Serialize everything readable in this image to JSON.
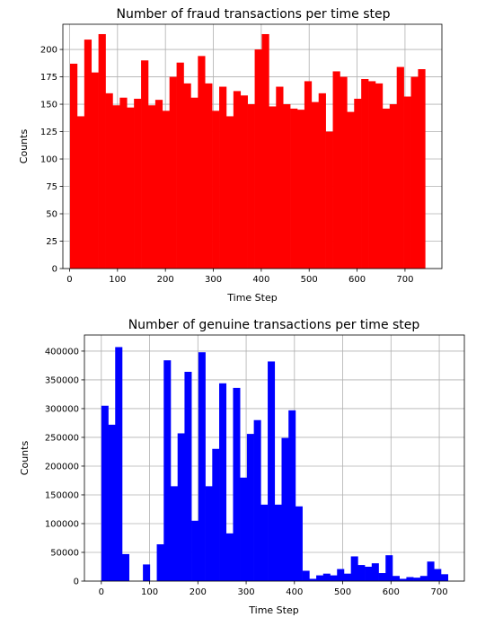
{
  "chart_data": [
    {
      "type": "bar",
      "title": "Number of fraud transactions per time step",
      "xlabel": "Time Step",
      "ylabel": "Counts",
      "color": "#ff0000",
      "grid": true,
      "xlim": [
        -14,
        777
      ],
      "ylim": [
        0,
        223
      ],
      "xticks": [
        0,
        100,
        200,
        300,
        400,
        500,
        600,
        700
      ],
      "xtick_labels": [
        "0",
        "100",
        "200",
        "300",
        "400",
        "500",
        "600",
        "700"
      ],
      "yticks": [
        0,
        25,
        50,
        75,
        100,
        125,
        150,
        175,
        200
      ],
      "ytick_labels": [
        "0",
        "25",
        "50",
        "75",
        "100",
        "125",
        "150",
        "175",
        "200"
      ],
      "bin_edges": [
        1,
        15.82,
        30.64,
        45.46,
        60.28,
        75.1,
        89.92,
        104.74,
        119.56,
        134.38,
        149.2,
        164.02,
        178.84,
        193.66,
        208.48,
        223.3,
        238.12,
        252.94,
        267.76,
        282.58,
        297.4,
        312.22,
        327.04,
        341.86,
        356.68,
        371.5,
        386.32,
        401.14,
        415.96,
        430.78,
        445.6,
        460.42,
        475.24,
        490.06,
        504.88,
        519.7,
        534.52,
        549.34,
        564.16,
        578.98,
        593.8,
        608.62,
        623.44,
        638.26,
        653.08,
        667.9,
        682.72,
        697.54,
        712.36,
        727.18,
        742
      ],
      "values": [
        187,
        139,
        209,
        179,
        214,
        160,
        149,
        156,
        147,
        155,
        190,
        149,
        154,
        144,
        175,
        188,
        169,
        156,
        194,
        169,
        144,
        166,
        139,
        162,
        158,
        150,
        200,
        214,
        148,
        166,
        150,
        146,
        145,
        171,
        152,
        160,
        125,
        180,
        175,
        143,
        155,
        173,
        171,
        169,
        146,
        150,
        184,
        157,
        175,
        182
      ]
    },
    {
      "type": "bar",
      "title": "Number of genuine transactions per time step",
      "xlabel": "Time Step",
      "ylabel": "Counts",
      "color": "#0000ff",
      "grid": true,
      "xlim": [
        -35,
        752
      ],
      "ylim": [
        0,
        428000
      ],
      "xticks": [
        0,
        100,
        200,
        300,
        400,
        500,
        600,
        700
      ],
      "xtick_labels": [
        "0",
        "100",
        "200",
        "300",
        "400",
        "500",
        "600",
        "700"
      ],
      "yticks": [
        0,
        50000,
        100000,
        150000,
        200000,
        250000,
        300000,
        350000,
        400000
      ],
      "ytick_labels": [
        "0",
        "50000",
        "100000",
        "150000",
        "200000",
        "250000",
        "300000",
        "350000",
        "400000"
      ],
      "bin_edges": [
        0,
        14.36,
        28.72,
        43.08,
        57.44,
        71.8,
        86.16,
        100.52,
        114.88,
        129.24,
        143.6,
        157.96,
        172.32,
        186.68,
        201.04,
        215.4,
        229.76,
        244.12,
        258.48,
        272.84,
        287.2,
        301.56,
        315.92,
        330.28,
        344.64,
        359,
        373.36,
        387.72,
        402.08,
        416.44,
        430.8,
        445.16,
        459.52,
        473.88,
        488.24,
        502.6,
        516.96,
        531.32,
        545.68,
        560.04,
        574.4,
        588.76,
        603.12,
        617.48,
        631.84,
        646.2,
        660.56,
        674.92,
        689.28,
        703.64,
        718
      ],
      "values": [
        305000,
        272000,
        407000,
        47000,
        0,
        0,
        29000,
        0,
        64000,
        384000,
        165000,
        257000,
        364000,
        105000,
        398000,
        165000,
        230000,
        344000,
        83000,
        336000,
        180000,
        256000,
        280000,
        133000,
        382000,
        133000,
        249000,
        297000,
        130000,
        18000,
        4000,
        10000,
        13000,
        10000,
        21000,
        13000,
        43000,
        28000,
        25000,
        31000,
        14000,
        45000,
        9000,
        4000,
        7000,
        6000,
        9000,
        34000,
        21000,
        12000
      ]
    }
  ]
}
